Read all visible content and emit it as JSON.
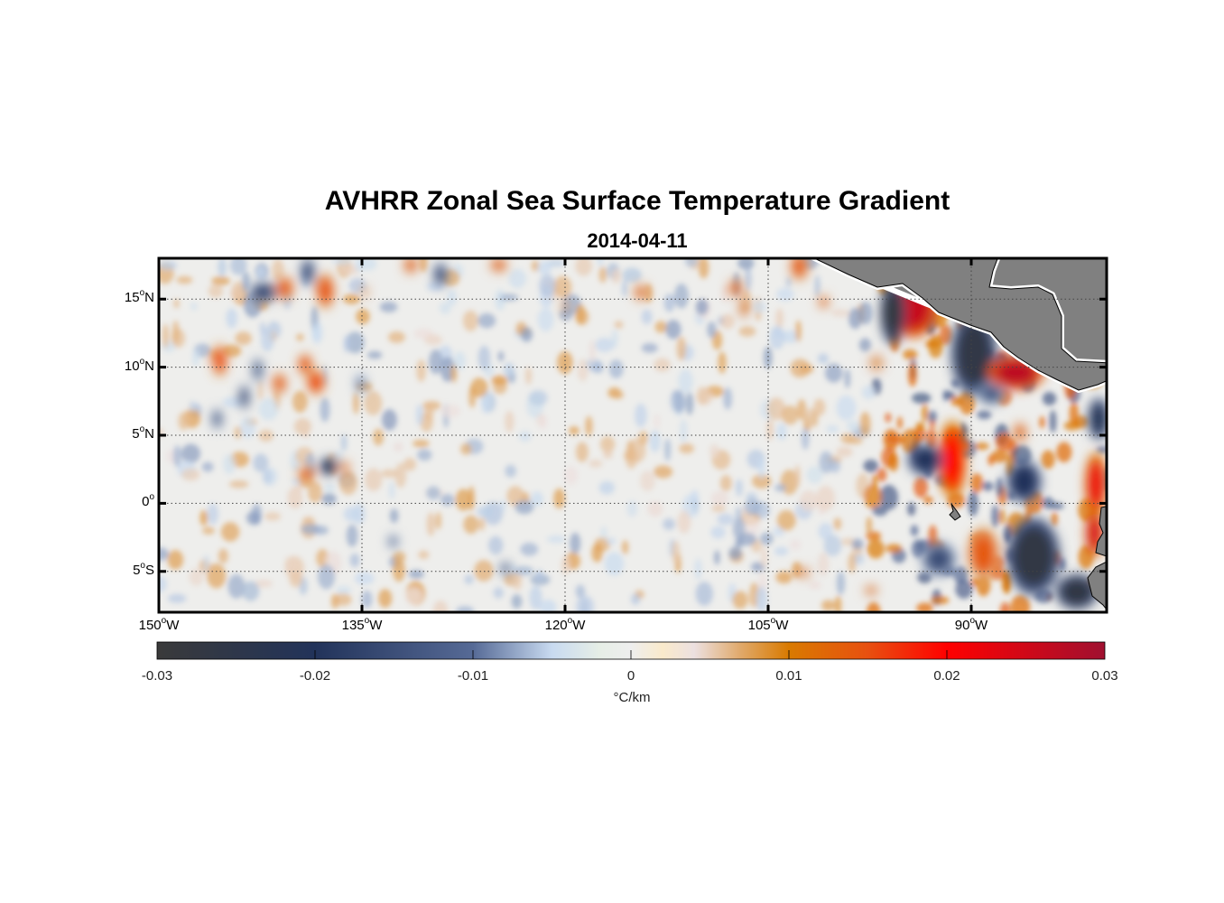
{
  "title": "AVHRR Zonal Sea Surface Temperature Gradient",
  "subtitle": "2014-04-11",
  "degree_symbol": "o",
  "chart_data": {
    "type": "heatmap",
    "title": "AVHRR Zonal Sea Surface Temperature Gradient",
    "subtitle": "2014-04-11",
    "lon_range": [
      -150,
      -80
    ],
    "lat_range": [
      -8,
      18
    ],
    "lat_ticks": [
      {
        "value": 15,
        "num": "15",
        "hemi": "N"
      },
      {
        "value": 10,
        "num": "10",
        "hemi": "N"
      },
      {
        "value": 5,
        "num": "5",
        "hemi": "N"
      },
      {
        "value": 0,
        "num": "0",
        "hemi": ""
      },
      {
        "value": -5,
        "num": "5",
        "hemi": "S"
      }
    ],
    "lon_ticks": [
      {
        "value": -150,
        "num": "150",
        "hemi": "W"
      },
      {
        "value": -135,
        "num": "135",
        "hemi": "W"
      },
      {
        "value": -120,
        "num": "120",
        "hemi": "W"
      },
      {
        "value": -105,
        "num": "105",
        "hemi": "W"
      },
      {
        "value": -90,
        "num": "90",
        "hemi": "W"
      }
    ],
    "colorbar": {
      "range": [
        -0.03,
        0.03
      ],
      "ticks": [
        "-0.03",
        "-0.02",
        "-0.01",
        "0",
        "0.01",
        "0.02",
        "0.03"
      ],
      "tick_values": [
        -0.03,
        -0.02,
        -0.01,
        0,
        0.01,
        0.02,
        0.03
      ],
      "label": "°C/km",
      "stops": [
        [
          -0.03,
          "#3a3a3a"
        ],
        [
          -0.02,
          "#22335a"
        ],
        [
          -0.01,
          "#566a96"
        ],
        [
          -0.005,
          "#c8daf0"
        ],
        [
          -0.002,
          "#e6eee6"
        ],
        [
          0,
          "#eeeeee"
        ],
        [
          0.002,
          "#faeacb"
        ],
        [
          0.004,
          "#ece0e0"
        ],
        [
          0.007,
          "#e0a868"
        ],
        [
          0.01,
          "#d97a00"
        ],
        [
          0.015,
          "#e85010"
        ],
        [
          0.02,
          "#ff0000"
        ],
        [
          0.03,
          "#a01030"
        ]
      ]
    },
    "features": [
      {
        "lon": -94.3,
        "lat": 14.5,
        "value": 0.026,
        "dlon": 1.4,
        "dlat": 1.8
      },
      {
        "lon": -95.8,
        "lat": 14.0,
        "value": -0.028,
        "dlon": 0.7,
        "dlat": 1.8
      },
      {
        "lon": -89.8,
        "lat": 11.0,
        "value": -0.026,
        "dlon": 1.3,
        "dlat": 2.4
      },
      {
        "lon": -86.7,
        "lat": 9.6,
        "value": 0.027,
        "dlon": 1.6,
        "dlat": 1.0
      },
      {
        "lon": -91.4,
        "lat": 3.2,
        "value": 0.02,
        "dlon": 0.8,
        "dlat": 2.2
      },
      {
        "lon": -93.4,
        "lat": 3.2,
        "value": -0.02,
        "dlon": 1.0,
        "dlat": 0.9
      },
      {
        "lon": -86.1,
        "lat": 1.6,
        "value": -0.02,
        "dlon": 1.0,
        "dlat": 1.2
      },
      {
        "lon": -80.8,
        "lat": 1.4,
        "value": 0.022,
        "dlon": 0.6,
        "dlat": 1.8
      },
      {
        "lon": -80.9,
        "lat": -2.2,
        "value": 0.024,
        "dlon": 0.5,
        "dlat": 1.4
      },
      {
        "lon": -89.1,
        "lat": -3.7,
        "value": 0.014,
        "dlon": 0.9,
        "dlat": 1.5
      },
      {
        "lon": -85.4,
        "lat": -3.9,
        "value": -0.027,
        "dlon": 1.5,
        "dlat": 2.2
      },
      {
        "lon": -82.2,
        "lat": -6.5,
        "value": -0.027,
        "dlon": 1.2,
        "dlat": 1.0
      },
      {
        "lon": -92.4,
        "lat": -4.1,
        "value": -0.015,
        "dlon": 1.0,
        "dlat": 1.0
      },
      {
        "lon": -80.6,
        "lat": 6.2,
        "value": -0.022,
        "dlon": 0.6,
        "dlat": 1.2
      },
      {
        "lon": -88.5,
        "lat": 8.0,
        "value": -0.014,
        "dlon": 0.8,
        "dlat": 0.6
      },
      {
        "lon": -86.4,
        "lat": 5.2,
        "value": 0.012,
        "dlon": 0.4,
        "dlat": 0.6
      },
      {
        "lon": -145.5,
        "lat": 10.5,
        "value": 0.016,
        "dlon": 0.4,
        "dlat": 0.9
      },
      {
        "lon": -142.3,
        "lat": 15.5,
        "value": -0.016,
        "dlon": 0.8,
        "dlat": 0.6
      },
      {
        "lon": -140.7,
        "lat": 15.8,
        "value": 0.014,
        "dlon": 0.5,
        "dlat": 0.7
      },
      {
        "lon": -137.7,
        "lat": 15.6,
        "value": 0.015,
        "dlon": 0.5,
        "dlat": 1.0
      },
      {
        "lon": -139.0,
        "lat": 17.0,
        "value": -0.016,
        "dlon": 0.4,
        "dlat": 0.8
      },
      {
        "lon": -139.2,
        "lat": 10.2,
        "value": 0.015,
        "dlon": 0.4,
        "dlat": 0.6
      },
      {
        "lon": -138.4,
        "lat": 8.9,
        "value": 0.016,
        "dlon": 0.5,
        "dlat": 0.7
      },
      {
        "lon": -141.1,
        "lat": 8.8,
        "value": 0.014,
        "dlon": 0.4,
        "dlat": 0.6
      },
      {
        "lon": -143.7,
        "lat": 7.8,
        "value": -0.016,
        "dlon": 0.3,
        "dlat": 0.7
      },
      {
        "lon": -142.7,
        "lat": 9.8,
        "value": -0.014,
        "dlon": 0.3,
        "dlat": 0.7
      },
      {
        "lon": -145.7,
        "lat": 6.2,
        "value": -0.014,
        "dlon": 0.3,
        "dlat": 0.6
      },
      {
        "lon": -137.5,
        "lat": 2.7,
        "value": -0.022,
        "dlon": 0.5,
        "dlat": 0.5
      },
      {
        "lon": -139.1,
        "lat": 2.2,
        "value": 0.014,
        "dlon": 0.5,
        "dlat": 0.4
      },
      {
        "lon": -136.3,
        "lat": 2.6,
        "value": 0.012,
        "dlon": 0.3,
        "dlat": 0.4
      },
      {
        "lon": -131.4,
        "lat": 17.5,
        "value": 0.013,
        "dlon": 0.4,
        "dlat": 0.5
      },
      {
        "lon": -129.2,
        "lat": 16.8,
        "value": -0.016,
        "dlon": 0.4,
        "dlat": 0.7
      },
      {
        "lon": -124.9,
        "lat": 17.5,
        "value": 0.013,
        "dlon": 0.5,
        "dlat": 0.4
      },
      {
        "lon": -114.4,
        "lat": 15.5,
        "value": 0.012,
        "dlon": 0.4,
        "dlat": 0.5
      },
      {
        "lon": -107.4,
        "lat": 15.8,
        "value": 0.013,
        "dlon": 0.4,
        "dlat": 0.5
      },
      {
        "lon": -102.7,
        "lat": 17.4,
        "value": 0.014,
        "dlon": 0.5,
        "dlat": 0.8
      },
      {
        "lon": -100.9,
        "lat": 14.8,
        "value": 0.012,
        "dlon": 0.3,
        "dlat": 0.4
      },
      {
        "lon": -106.8,
        "lat": 14.3,
        "value": 0.01,
        "dlon": 0.3,
        "dlat": 0.6
      },
      {
        "lon": -135.1,
        "lat": 8.8,
        "value": -0.01,
        "dlon": 0.3,
        "dlat": 0.6
      },
      {
        "lon": -132.7,
        "lat": -2.8,
        "value": -0.012,
        "dlon": 0.3,
        "dlat": 0.4
      },
      {
        "lon": -124.4,
        "lat": -4.8,
        "value": -0.014,
        "dlon": 0.3,
        "dlat": 0.4
      },
      {
        "lon": -102.4,
        "lat": -5.1,
        "value": 0.011,
        "dlon": 0.4,
        "dlat": 0.3
      },
      {
        "lon": -97.4,
        "lat": -6.4,
        "value": 0.011,
        "dlon": 0.4,
        "dlat": 0.3
      },
      {
        "lon": -120.0,
        "lat": 14.5,
        "value": 0.01,
        "dlon": 0.2,
        "dlat": 0.4
      },
      {
        "lon": -134.8,
        "lat": 15.5,
        "value": 0.009,
        "dlon": 0.2,
        "dlat": 0.4
      },
      {
        "lon": -97.0,
        "lat": 10.3,
        "value": 0.008,
        "dlon": 0.5,
        "dlat": 0.6
      }
    ]
  }
}
